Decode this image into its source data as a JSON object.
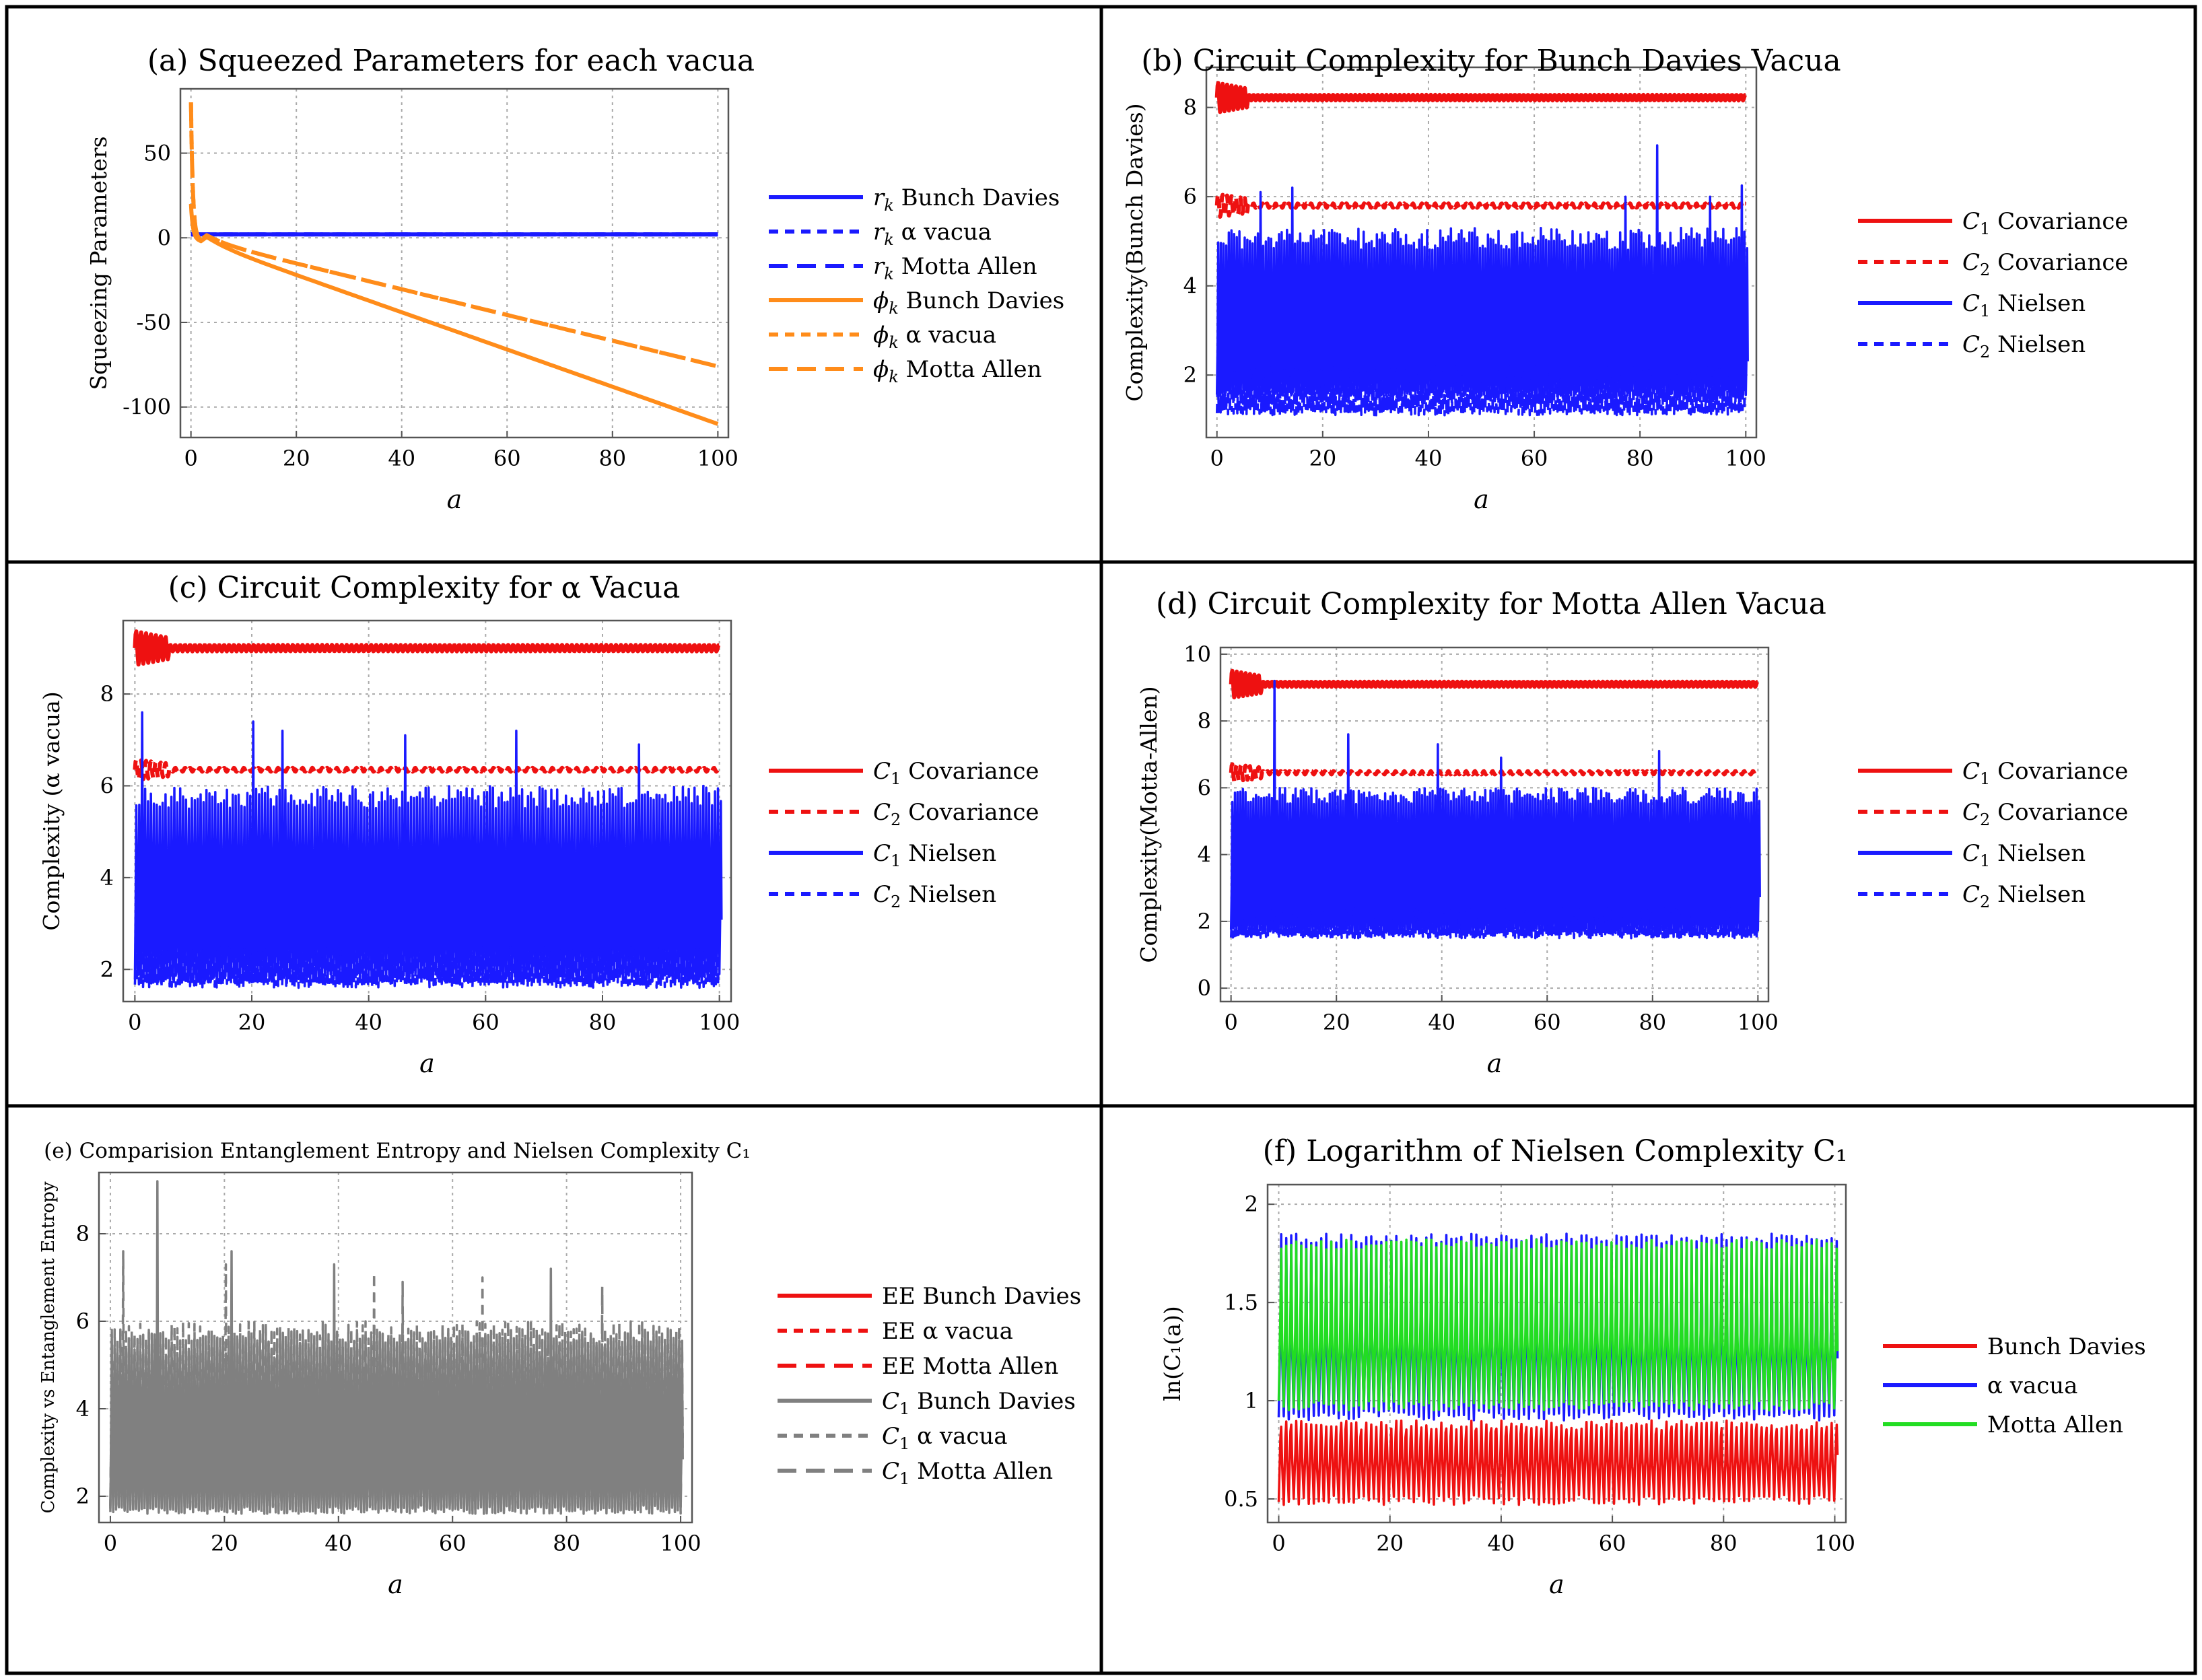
{
  "figure_labels": {
    "sym_rk": "r",
    "sym_phik": "ϕ",
    "sub_k": "k",
    "sym_C": "C",
    "sub_1": "1",
    "sub_2": "2",
    "sym_alpha": "α"
  },
  "chart_data": [
    {
      "id": "a",
      "type": "line",
      "title": "(a) Squeezed Parameters for each vacua",
      "xlabel": "a",
      "ylabel": "Squeezing Parameters",
      "xlim": [
        -2,
        102
      ],
      "ylim": [
        -118,
        88
      ],
      "xticks": [
        0,
        20,
        40,
        60,
        80,
        100
      ],
      "yticks": [
        -100,
        -50,
        0,
        50
      ],
      "grid": true,
      "legend_position": "right",
      "series": [
        {
          "name": "Bunch Davies",
          "symbol": "r",
          "color": "#1a1aff",
          "dash": "solid",
          "kind": "flat",
          "value": 2
        },
        {
          "name": "α vacua",
          "symbol": "r",
          "color": "#1a1aff",
          "dash": "short",
          "kind": "flat",
          "value": 2
        },
        {
          "name": "Motta Allen",
          "symbol": "r",
          "color": "#1a1aff",
          "dash": "long",
          "kind": "flat",
          "value": 2
        },
        {
          "name": "Bunch Davies",
          "symbol": "ϕ",
          "color": "#ff8c1a",
          "dash": "solid",
          "kind": "decay",
          "start": 20,
          "end": -110
        },
        {
          "name": "α vacua",
          "symbol": "ϕ",
          "color": "#ff8c1a",
          "dash": "short",
          "kind": "decay",
          "start": 80,
          "end": -76
        },
        {
          "name": "Motta Allen",
          "symbol": "ϕ",
          "color": "#ff8c1a",
          "dash": "long",
          "kind": "decay",
          "start": 80,
          "end": -76
        }
      ]
    },
    {
      "id": "b",
      "type": "line",
      "title": "(b) Circuit Complexity for Bunch Davies Vacua",
      "xlabel": "a",
      "ylabel": "Complexity(Bunch Davies)",
      "xlim": [
        -2,
        102
      ],
      "ylim": [
        0.6,
        8.9
      ],
      "xticks": [
        0,
        20,
        40,
        60,
        80,
        100
      ],
      "yticks": [
        2,
        4,
        6,
        8
      ],
      "grid": true,
      "legend_position": "right",
      "series": [
        {
          "name": "Covariance",
          "symbol": "C",
          "sub": "1",
          "color": "#ee1111",
          "dash": "solid",
          "kind": "ring",
          "base": 8.22,
          "amp": 0.18
        },
        {
          "name": "Covariance",
          "symbol": "C",
          "sub": "2",
          "color": "#ee1111",
          "dash": "short",
          "kind": "ring",
          "base": 5.8,
          "amp": 0.14
        },
        {
          "name": "Nielsen",
          "symbol": "C",
          "sub": "1",
          "color": "#1a1aff",
          "dash": "solid",
          "kind": "spiky",
          "lo": 1.5,
          "mid": 2.3,
          "hi": 5.3,
          "spikes": [
            [
              8,
              6.1
            ],
            [
              14,
              6.2
            ],
            [
              77,
              6.0
            ],
            [
              83,
              7.15
            ],
            [
              93,
              6.0
            ],
            [
              99,
              6.25
            ]
          ]
        },
        {
          "name": "Nielsen",
          "symbol": "C",
          "sub": "2",
          "color": "#1a1aff",
          "dash": "short",
          "kind": "band",
          "lo": 1.1,
          "hi": 2.2
        }
      ]
    },
    {
      "id": "c",
      "type": "line",
      "title": "(c) Circuit Complexity for α Vacua",
      "xlabel": "a",
      "ylabel": "Complexity (α vacua)",
      "xlim": [
        -2,
        102
      ],
      "ylim": [
        1.3,
        9.6
      ],
      "xticks": [
        0,
        20,
        40,
        60,
        80,
        100
      ],
      "yticks": [
        2,
        4,
        6,
        8
      ],
      "grid": true,
      "legend_position": "right",
      "series": [
        {
          "name": "Covariance",
          "symbol": "C",
          "sub": "1",
          "color": "#ee1111",
          "dash": "solid",
          "kind": "ring",
          "base": 9.0,
          "amp": 0.2
        },
        {
          "name": "Covariance",
          "symbol": "C",
          "sub": "2",
          "color": "#ee1111",
          "dash": "short",
          "kind": "ring",
          "base": 6.35,
          "amp": 0.12
        },
        {
          "name": "Nielsen",
          "symbol": "C",
          "sub": "1",
          "color": "#1a1aff",
          "dash": "solid",
          "kind": "spiky",
          "lo": 1.7,
          "mid": 3.0,
          "hi": 6.0,
          "spikes": [
            [
              1,
              7.6
            ],
            [
              20,
              7.4
            ],
            [
              25,
              7.2
            ],
            [
              46,
              7.1
            ],
            [
              65,
              7.2
            ],
            [
              86,
              6.9
            ]
          ]
        },
        {
          "name": "Nielsen",
          "symbol": "C",
          "sub": "2",
          "color": "#1a1aff",
          "dash": "short",
          "kind": "band",
          "lo": 1.6,
          "hi": 2.5
        }
      ]
    },
    {
      "id": "d",
      "type": "line",
      "title": "(d) Circuit Complexity for Motta Allen Vacua",
      "xlabel": "a",
      "ylabel": "Complexity(Motta-Allen)",
      "xlim": [
        -2,
        102
      ],
      "ylim": [
        -0.4,
        10.2
      ],
      "xticks": [
        0,
        20,
        40,
        60,
        80,
        100
      ],
      "yticks": [
        0,
        2,
        4,
        6,
        8,
        10
      ],
      "grid": true,
      "legend_position": "right",
      "series": [
        {
          "name": "Covariance",
          "symbol": "C",
          "sub": "1",
          "color": "#ee1111",
          "dash": "solid",
          "kind": "ring",
          "base": 9.1,
          "amp": 0.22
        },
        {
          "name": "Covariance",
          "symbol": "C",
          "sub": "2",
          "color": "#ee1111",
          "dash": "short",
          "kind": "ring",
          "base": 6.45,
          "amp": 0.14
        },
        {
          "name": "Nielsen",
          "symbol": "C",
          "sub": "1",
          "color": "#1a1aff",
          "dash": "solid",
          "kind": "spiky",
          "lo": 1.6,
          "mid": 2.6,
          "hi": 6.0,
          "spikes": [
            [
              8,
              9.2
            ],
            [
              22,
              7.6
            ],
            [
              39,
              7.3
            ],
            [
              51,
              6.9
            ],
            [
              81,
              7.1
            ]
          ]
        },
        {
          "name": "Nielsen",
          "symbol": "C",
          "sub": "2",
          "color": "#1a1aff",
          "dash": "short",
          "kind": "band",
          "lo": 1.5,
          "hi": 2.4
        }
      ]
    },
    {
      "id": "e",
      "type": "line",
      "title": "(e) Comparision Entanglement Entropy and Nielsen Complexity C₁",
      "xlabel": "a",
      "ylabel": "Complexity vs Entanglement Entropy",
      "xlim": [
        -2,
        102
      ],
      "ylim": [
        1.4,
        9.4
      ],
      "xticks": [
        0,
        20,
        40,
        60,
        80,
        100
      ],
      "yticks": [
        2,
        4,
        6,
        8
      ],
      "grid": true,
      "legend_position": "right",
      "series": [
        {
          "name": "EE Bunch Davies",
          "color": "#ee1111",
          "dash": "solid",
          "kind": "ee",
          "value": 3.9
        },
        {
          "name": "EE α vacua",
          "color": "#ee1111",
          "dash": "short",
          "kind": "ee",
          "value": 3.8
        },
        {
          "name": "EE Motta Allen",
          "color": "#ee1111",
          "dash": "long",
          "kind": "ee",
          "value": 4.0
        },
        {
          "name": "Bunch Davies",
          "symbol": "C",
          "sub": "1",
          "color": "#808080",
          "dash": "solid",
          "kind": "spiky",
          "lo": 1.6,
          "mid": 2.6,
          "hi": 5.6,
          "spikes": [
            [
              8,
              9.2
            ],
            [
              21,
              7.6
            ],
            [
              39,
              7.3
            ],
            [
              77,
              7.2
            ]
          ]
        },
        {
          "name": "α vacua",
          "symbol": "C",
          "sub": "1",
          "color": "#808080",
          "dash": "short",
          "kind": "spiky",
          "lo": 1.7,
          "mid": 3.0,
          "hi": 6.0,
          "spikes": [
            [
              2,
              7.6
            ],
            [
              20,
              7.3
            ],
            [
              46,
              7.1
            ],
            [
              65,
              7.0
            ]
          ]
        },
        {
          "name": "Motta Allen",
          "symbol": "C",
          "sub": "1",
          "color": "#808080",
          "dash": "long",
          "kind": "spiky",
          "lo": 1.6,
          "mid": 2.8,
          "hi": 5.8,
          "spikes": [
            [
              51,
              6.9
            ],
            [
              86,
              6.8
            ]
          ]
        }
      ]
    },
    {
      "id": "f",
      "type": "line",
      "title": "(f) Logarithm of Nielsen Complexity C₁",
      "xlabel": "a",
      "ylabel": "ln(C₁(a))",
      "xlim": [
        -2,
        102
      ],
      "ylim": [
        0.38,
        2.1
      ],
      "xticks": [
        0,
        20,
        40,
        60,
        80,
        100
      ],
      "yticks": [
        0.5,
        1.0,
        1.5,
        2.0
      ],
      "grid": true,
      "legend_position": "right",
      "series": [
        {
          "name": "Bunch Davies",
          "color": "#ee1111",
          "dash": "solid",
          "kind": "log",
          "lo": 0.47,
          "mid": 0.75,
          "hi": 0.9
        },
        {
          "name": "α vacua",
          "color": "#1a1aff",
          "dash": "solid",
          "kind": "log",
          "lo": 0.9,
          "mid": 1.3,
          "hi": 1.85
        },
        {
          "name": "Motta Allen",
          "color": "#22dd22",
          "dash": "solid",
          "kind": "log",
          "lo": 0.95,
          "mid": 1.35,
          "hi": 1.82
        }
      ]
    }
  ]
}
